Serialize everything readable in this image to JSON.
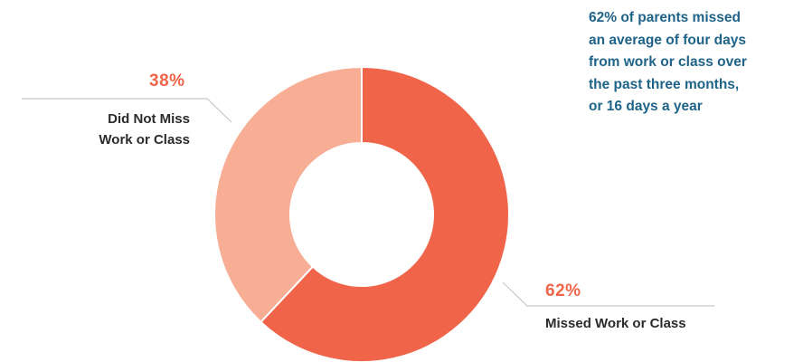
{
  "chart_data": {
    "type": "pie",
    "style": "donut",
    "segments": [
      {
        "label_lines": [
          "Missed Work or Class"
        ],
        "value": 62,
        "value_label": "62%",
        "color": "#f0654a"
      },
      {
        "label_lines": [
          "Did Not Miss",
          "Work or Class"
        ],
        "value": 38,
        "value_label": "38%",
        "color": "#f7ae95"
      }
    ],
    "annotation_lines": [
      "62% of parents missed",
      "an average of four days",
      "from work or class over",
      "the past three months,",
      "or 16 days a year"
    ]
  },
  "colors": {
    "accent": "#f0654a",
    "secondary": "#f7ae95",
    "annotation_text": "#1f6388",
    "label_text": "#2b2b2b",
    "leader_line": "#c8c8c8"
  }
}
